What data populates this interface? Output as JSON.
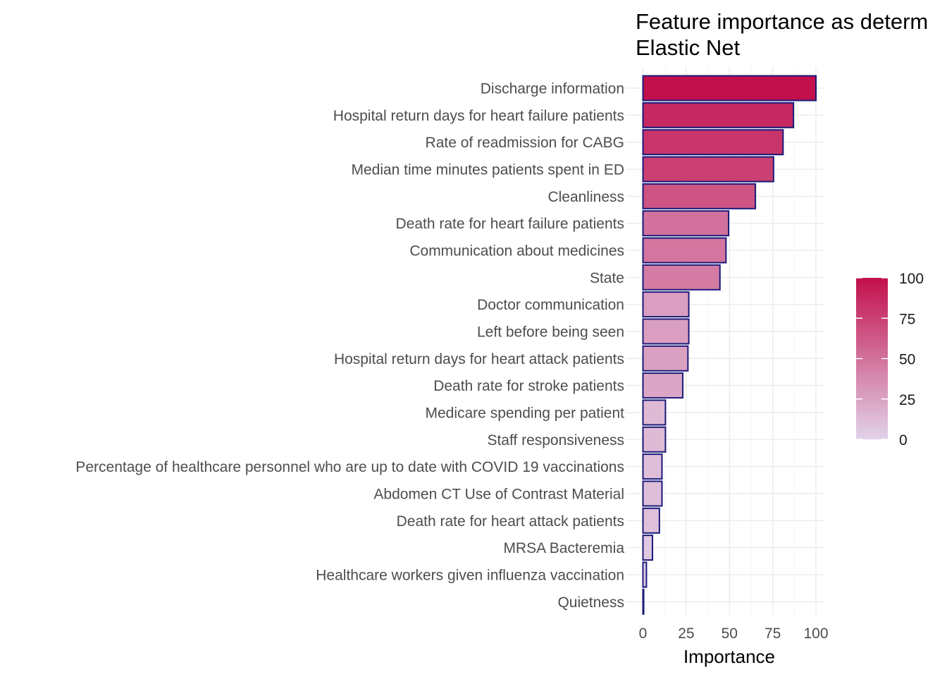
{
  "chart_data": {
    "type": "bar",
    "orientation": "horizontal",
    "title": "Feature importance as determined by Elastic Net",
    "title_lines": [
      "Feature importance as determ",
      "Elastic Net"
    ],
    "xlabel": "Importance",
    "ylabel": "",
    "xlim": [
      0,
      100
    ],
    "x_ticks": [
      0,
      25,
      50,
      75,
      100
    ],
    "grid": true,
    "bar_outline_color": "#1a1a7a",
    "color_low": "#e2d3ea",
    "color_high": "#c2104c",
    "legend": {
      "type": "colorbar",
      "placement": "right",
      "ticks": [
        0,
        25,
        50,
        75,
        100
      ]
    },
    "categories": [
      "Discharge information",
      "Hospital return days for heart failure patients",
      "Rate of readmission for CABG",
      "Median time  minutes  patients spent in ED",
      "Cleanliness",
      "Death rate for heart failure patients",
      "Communication about medicines",
      "State",
      "Doctor communication",
      "Left before being seen",
      "Hospital return days for heart attack patients",
      "Death rate for stroke patients",
      "Medicare spending per patient",
      "Staff responsiveness",
      "Percentage of healthcare personnel who are up to date with COVID 19 vaccinations",
      "Abdomen CT Use of Contrast Material",
      "Death rate for heart attack patients",
      "MRSA Bacteremia",
      "Healthcare workers given influenza vaccination",
      "Quietness"
    ],
    "values": [
      100,
      87,
      81,
      75.5,
      65,
      49.5,
      48,
      44.5,
      26.5,
      26.5,
      26,
      23,
      13,
      13,
      11,
      11,
      9.5,
      5.5,
      2,
      0.4
    ]
  }
}
